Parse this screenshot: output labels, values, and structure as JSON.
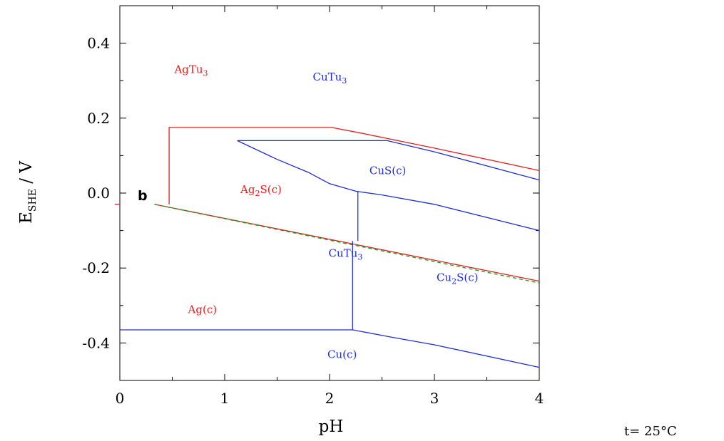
{
  "chart_data": {
    "type": "line",
    "title": "",
    "xlabel": "pH",
    "ylabel": {
      "main": "E",
      "sub": "SHE",
      "rest": " / V"
    },
    "xlim": [
      0,
      4
    ],
    "ylim": [
      -0.5,
      0.5
    ],
    "x_ticks": [
      "0",
      "1",
      "2",
      "3",
      "4"
    ],
    "y_ticks": [
      {
        "value": 0.4,
        "label": "0.4"
      },
      {
        "value": 0.2,
        "label": "0.2"
      },
      {
        "value": 0.0,
        "label": "0.0"
      },
      {
        "value": -0.2,
        "label": "-0.2"
      },
      {
        "value": -0.4,
        "label": "-0.4"
      }
    ],
    "panel_label": "b",
    "footnote": "t= 25°C",
    "colors": {
      "Ag": "#e02020",
      "Cu": "#1f2fd0",
      "dashed": "#1a9a1a",
      "axis": "#000000"
    },
    "series": [
      {
        "color": "Ag",
        "points": [
          [
            -0.05,
            -0.03
          ],
          [
            0.0,
            -0.03
          ]
        ]
      },
      {
        "color": "Ag",
        "points": [
          [
            0.47,
            -0.03
          ],
          [
            0.47,
            0.175
          ],
          [
            2.02,
            0.175
          ],
          [
            2.3,
            0.16
          ],
          [
            3.0,
            0.12
          ],
          [
            4.0,
            0.06
          ]
        ]
      },
      {
        "color": "Ag",
        "points": [
          [
            0.33,
            -0.03
          ],
          [
            4.0,
            -0.235
          ]
        ]
      },
      {
        "color": "dashed",
        "dash": true,
        "points": [
          [
            0.33,
            -0.03
          ],
          [
            4.0,
            -0.24
          ]
        ]
      },
      {
        "color": "Cu",
        "points": [
          [
            1.12,
            0.14
          ],
          [
            2.55,
            0.14
          ],
          [
            3.0,
            0.11
          ],
          [
            4.0,
            0.035
          ]
        ]
      },
      {
        "color": "Cu",
        "points": [
          [
            1.12,
            0.14
          ],
          [
            1.5,
            0.09
          ],
          [
            1.8,
            0.055
          ],
          [
            2.0,
            0.025
          ],
          [
            2.25,
            0.005
          ],
          [
            2.5,
            -0.005
          ],
          [
            3.0,
            -0.03
          ],
          [
            4.0,
            -0.1
          ]
        ]
      },
      {
        "color": "Cu",
        "points": [
          [
            2.27,
            0.005
          ],
          [
            2.27,
            -0.128
          ],
          [
            2.27,
            -0.128
          ]
        ]
      },
      {
        "color": "Cu",
        "points": [
          [
            2.22,
            -0.128
          ],
          [
            2.22,
            -0.365
          ]
        ]
      },
      {
        "color": "Cu",
        "points": [
          [
            0.0,
            -0.365
          ],
          [
            2.22,
            -0.365
          ],
          [
            2.6,
            -0.385
          ],
          [
            3.0,
            -0.405
          ],
          [
            4.0,
            -0.465
          ]
        ]
      }
    ],
    "region_labels": [
      {
        "text": "AgTu",
        "sub": "3",
        "color": "Ag",
        "x": 0.52,
        "y": 0.32
      },
      {
        "text": "CuTu",
        "sub": "3",
        "color": "Cu",
        "x": 1.84,
        "y": 0.3
      },
      {
        "text": "CuS(c)",
        "sub": "",
        "color": "Cu",
        "x": 2.38,
        "y": 0.05
      },
      {
        "text": "Ag",
        "sub": "2",
        "tail": "S(c)",
        "color": "Ag",
        "x": 1.15,
        "y": 0.0
      },
      {
        "text": "CuTu",
        "sub": "3",
        "color": "Cu",
        "x": 1.99,
        "y": -0.17
      },
      {
        "text": "Cu",
        "sub": "2",
        "tail": "S(c)",
        "color": "Cu",
        "x": 3.02,
        "y": -0.235
      },
      {
        "text": "Ag(c)",
        "sub": "",
        "color": "Ag",
        "x": 0.65,
        "y": -0.32
      },
      {
        "text": "Cu(c)",
        "sub": "",
        "color": "Cu",
        "x": 1.98,
        "y": -0.44
      }
    ]
  }
}
